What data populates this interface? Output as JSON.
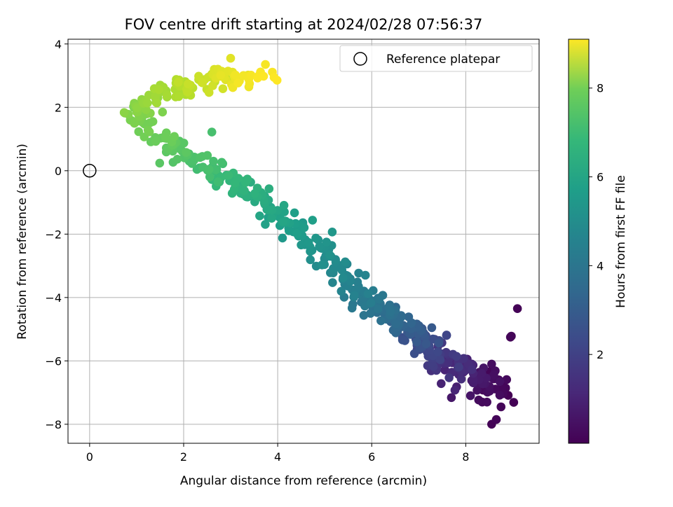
{
  "chart_data": {
    "type": "scatter",
    "title": "FOV centre drift starting at 2024/02/28 07:56:37",
    "xlabel": "Angular distance from reference (arcmin)",
    "ylabel": "Rotation from reference (arcmin)",
    "colorbar_label": "Hours from first FF file",
    "xlim": [
      -0.46,
      9.56
    ],
    "ylim": [
      -8.6,
      4.15
    ],
    "clim": [
      0.0,
      9.1
    ],
    "xticks": [
      "0",
      "2",
      "4",
      "6",
      "8"
    ],
    "yticks": [
      "−8",
      "−6",
      "−4",
      "−2",
      "0",
      "2",
      "4"
    ],
    "cticks": [
      "2",
      "4",
      "6",
      "8"
    ],
    "grid": true,
    "colormap": "viridis",
    "legend": {
      "position": "top-right",
      "entries": [
        {
          "label": "Reference platepar",
          "marker": "open-circle"
        }
      ]
    },
    "reference_point": {
      "x": 0,
      "y": 0
    },
    "anchors": [
      {
        "t": 0.0,
        "x": 8.75,
        "y": -6.9
      },
      {
        "t": 0.6,
        "x": 8.2,
        "y": -6.6
      },
      {
        "t": 1.0,
        "x": 7.8,
        "y": -6.3
      },
      {
        "t": 1.6,
        "x": 7.4,
        "y": -5.9
      },
      {
        "t": 2.2,
        "x": 7.15,
        "y": -5.4
      },
      {
        "t": 2.8,
        "x": 6.8,
        "y": -4.9
      },
      {
        "t": 3.4,
        "x": 6.25,
        "y": -4.45
      },
      {
        "t": 4.0,
        "x": 5.6,
        "y": -3.6
      },
      {
        "t": 4.6,
        "x": 4.95,
        "y": -2.5
      },
      {
        "t": 5.0,
        "x": 4.35,
        "y": -1.85
      },
      {
        "t": 5.4,
        "x": 3.85,
        "y": -1.2
      },
      {
        "t": 5.8,
        "x": 3.3,
        "y": -0.65
      },
      {
        "t": 6.2,
        "x": 2.7,
        "y": -0.05
      },
      {
        "t": 6.6,
        "x": 2.05,
        "y": 0.55
      },
      {
        "t": 6.95,
        "x": 1.55,
        "y": 0.95
      },
      {
        "t": 7.2,
        "x": 1.15,
        "y": 1.5
      },
      {
        "t": 7.5,
        "x": 1.05,
        "y": 2.0
      },
      {
        "t": 7.85,
        "x": 1.6,
        "y": 2.5
      },
      {
        "t": 8.3,
        "x": 2.35,
        "y": 2.8
      },
      {
        "t": 8.8,
        "x": 3.0,
        "y": 3.05
      },
      {
        "t": 9.1,
        "x": 3.7,
        "y": 3.0
      }
    ],
    "n_points": 560,
    "outliers": [
      {
        "x": 9.1,
        "y": -4.35,
        "t": 0.05
      },
      {
        "x": 8.95,
        "y": -5.25,
        "t": 0.1
      },
      {
        "x": 8.97,
        "y": -5.22,
        "t": 0.12
      },
      {
        "x": 8.55,
        "y": -6.1,
        "t": 0.3
      },
      {
        "x": 8.55,
        "y": -8.0,
        "t": 0.05
      },
      {
        "x": 8.65,
        "y": -7.85,
        "t": 0.1
      },
      {
        "x": 8.75,
        "y": -7.45,
        "t": 0.15
      },
      {
        "x": 8.35,
        "y": -7.3,
        "t": 0.2
      },
      {
        "x": 8.45,
        "y": -7.3,
        "t": 0.25
      },
      {
        "x": 8.5,
        "y": -6.8,
        "t": 0.4
      },
      {
        "x": 8.1,
        "y": -7.1,
        "t": 0.5
      },
      {
        "x": 2.6,
        "y": 1.22,
        "t": 6.4
      },
      {
        "x": 1.55,
        "y": 1.85,
        "t": 7.3
      },
      {
        "x": 3.0,
        "y": 3.55,
        "t": 8.7
      },
      {
        "x": 2.65,
        "y": 3.2,
        "t": 8.6
      },
      {
        "x": 2.05,
        "y": 2.4,
        "t": 8.0
      },
      {
        "x": 3.6,
        "y": 3.0,
        "t": 9.05
      },
      {
        "x": 3.7,
        "y": 2.98,
        "t": 9.1
      },
      {
        "x": 3.4,
        "y": 2.75,
        "t": 8.95
      }
    ]
  }
}
